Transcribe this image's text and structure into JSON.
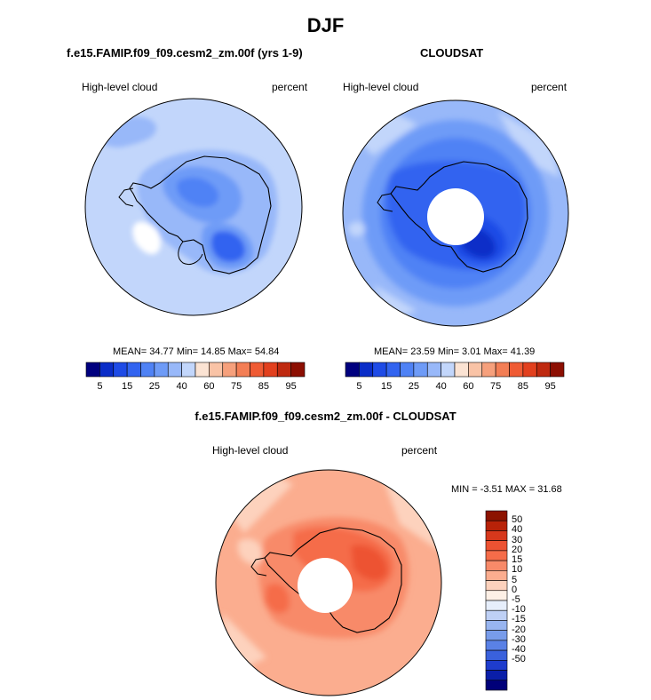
{
  "title": "DJF",
  "panels": {
    "model": {
      "title": "f.e15.FAMIP.f09_f09.cesm2_zm.00f (yrs 1-9)",
      "left_label": "High-level cloud",
      "right_label": "percent",
      "stats": "MEAN= 34.77  Min= 14.85  Max= 54.84"
    },
    "obs": {
      "title": "CLOUDSAT",
      "left_label": "High-level cloud",
      "right_label": "percent",
      "stats": "MEAN= 23.59  Min=  3.01  Max= 41.39"
    },
    "diff": {
      "title": "f.e15.FAMIP.f09_f09.cesm2_zm.00f - CLOUDSAT",
      "left_label": "High-level cloud",
      "right_label": "percent",
      "stats": "MIN = -3.51 MAX = 31.68"
    }
  },
  "colorbar_top": {
    "colors": [
      "#00007f",
      "#0a2dc8",
      "#1e4be6",
      "#3264f0",
      "#4f82f5",
      "#6e9bf7",
      "#98b8f9",
      "#c2d6fb",
      "#fbe3d3",
      "#f9c3a6",
      "#f6a07c",
      "#f37e55",
      "#ef5b34",
      "#e2401e",
      "#bf2a10",
      "#8c0f02"
    ],
    "labels": [
      "5",
      "15",
      "25",
      "40",
      "60",
      "75",
      "85",
      "95"
    ]
  },
  "colorbar_diff": {
    "colors_top_to_bottom": [
      "#8c1300",
      "#b82208",
      "#d7381c",
      "#ed5232",
      "#f56c49",
      "#f88a69",
      "#fbad8f",
      "#fdd2bd",
      "#fdf0e6",
      "#e6eefb",
      "#bed0f5",
      "#98b5f0",
      "#789cea",
      "#5a81e6",
      "#3a61dc",
      "#1e3ccd",
      "#0a1ea8",
      "#000079"
    ],
    "labels": [
      "50",
      "40",
      "30",
      "20",
      "15",
      "10",
      "5",
      "0",
      "-5",
      "-10",
      "-15",
      "-20",
      "-30",
      "-40",
      "-50"
    ]
  },
  "chart_data": [
    {
      "type": "heatmap",
      "title": "f.e15.FAMIP.f09_f09.cesm2_zm.00f (yrs 1-9)",
      "variable": "High-level cloud",
      "units": "percent",
      "projection": "south polar stereographic",
      "mean": 34.77,
      "min": 14.85,
      "max": 54.84,
      "contour_levels": [
        5,
        10,
        15,
        20,
        25,
        30,
        40,
        50,
        60,
        65,
        75,
        80,
        85,
        90,
        95
      ]
    },
    {
      "type": "heatmap",
      "title": "CLOUDSAT",
      "variable": "High-level cloud",
      "units": "percent",
      "projection": "south polar stereographic",
      "mean": 23.59,
      "min": 3.01,
      "max": 41.39,
      "contour_levels": [
        5,
        10,
        15,
        20,
        25,
        30,
        40,
        50,
        60,
        65,
        75,
        80,
        85,
        90,
        95
      ]
    },
    {
      "type": "heatmap",
      "title": "f.e15.FAMIP.f09_f09.cesm2_zm.00f - CLOUDSAT",
      "variable": "High-level cloud",
      "units": "percent",
      "projection": "south polar stereographic",
      "min": -3.51,
      "max": 31.68,
      "contour_levels": [
        -50,
        -40,
        -30,
        -20,
        -15,
        -10,
        -5,
        0,
        5,
        10,
        15,
        20,
        30,
        40,
        50
      ]
    }
  ]
}
